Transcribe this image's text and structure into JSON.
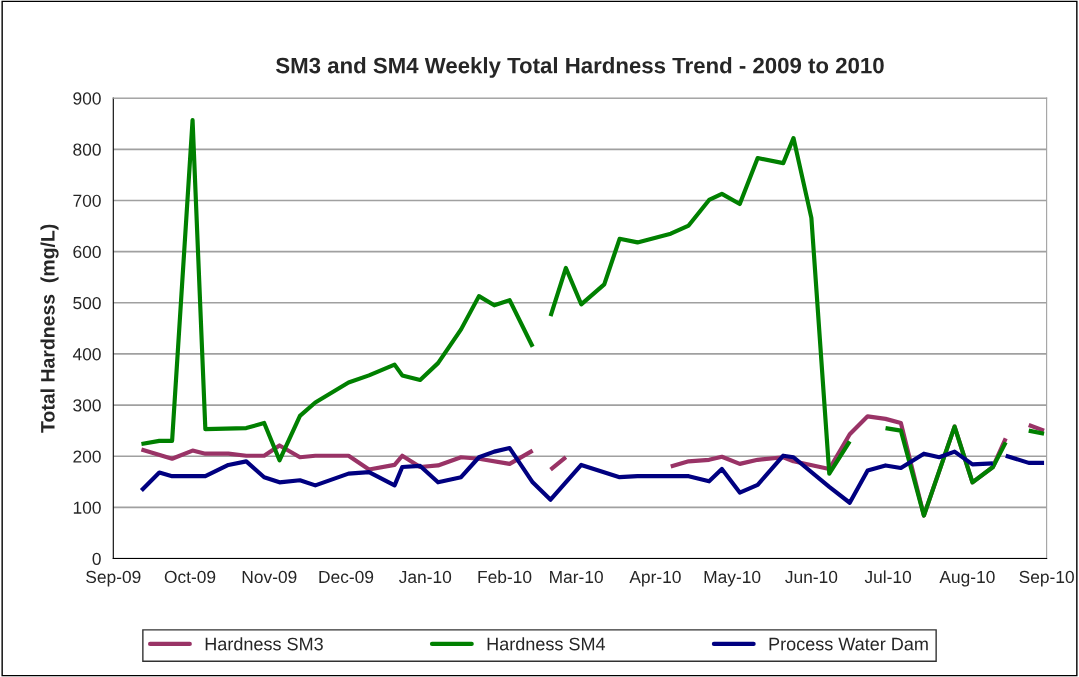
{
  "chart_data": {
    "type": "line",
    "title": "SM3 and SM4 Weekly Total Hardness Trend - 2009 to 2010",
    "ylabel": "Total Hardness  (mg/L)",
    "xlim": [
      "2009-09-01",
      "2010-09-01"
    ],
    "xticks": [
      {
        "value": "2009-09-01",
        "label": "Sep-09"
      },
      {
        "value": "2009-10-01",
        "label": "Oct-09"
      },
      {
        "value": "2009-11-01",
        "label": "Nov-09"
      },
      {
        "value": "2009-12-01",
        "label": "Dec-09"
      },
      {
        "value": "2010-01-01",
        "label": "Jan-10"
      },
      {
        "value": "2010-02-01",
        "label": "Feb-10"
      },
      {
        "value": "2010-03-01",
        "label": "Mar-10"
      },
      {
        "value": "2010-04-01",
        "label": "Apr-10"
      },
      {
        "value": "2010-05-01",
        "label": "May-10"
      },
      {
        "value": "2010-06-01",
        "label": "Jun-10"
      },
      {
        "value": "2010-07-01",
        "label": "Jul-10"
      },
      {
        "value": "2010-08-01",
        "label": "Aug-10"
      },
      {
        "value": "2010-09-01",
        "label": "Sep-10"
      }
    ],
    "ylim": [
      0,
      900
    ],
    "yticks": [
      0,
      100,
      200,
      300,
      400,
      500,
      600,
      700,
      800,
      900
    ],
    "grid": "y",
    "legend": "bottom",
    "marker": "none",
    "line_style": "solid",
    "series": [
      {
        "name": "Hardness SM3",
        "color": "#993366",
        "x": [
          "2009-09-12",
          "2009-09-24",
          "2009-10-02",
          "2009-10-07",
          "2009-10-16",
          "2009-10-23",
          "2009-10-30",
          "2009-11-05",
          "2009-11-13",
          "2009-11-19",
          "2009-12-02",
          "2009-12-10",
          "2009-12-20",
          "2009-12-23",
          "2009-12-30",
          "2010-01-06",
          "2010-01-15",
          "2010-01-22",
          "2010-02-03",
          "2010-02-12",
          "2010-02-15",
          "2010-02-19",
          "2010-02-25",
          "2010-03-30",
          "2010-04-07",
          "2010-04-14",
          "2010-04-22",
          "2010-04-27",
          "2010-05-04",
          "2010-05-11",
          "2010-05-21",
          "2010-05-25",
          "2010-06-08",
          "2010-06-16",
          "2010-06-23",
          "2010-06-30",
          "2010-07-06",
          "2010-07-15",
          "2010-07-27",
          "2010-08-03",
          "2010-08-11",
          "2010-08-16",
          "2010-08-20",
          "2010-08-25",
          "2010-08-31"
        ],
        "values": [
          213,
          195,
          211,
          205,
          205,
          201,
          201,
          221,
          198,
          201,
          201,
          174,
          183,
          201,
          179,
          182,
          198,
          195,
          185,
          211,
          null,
          174,
          198,
          null,
          180,
          190,
          193,
          199,
          185,
          193,
          198,
          190,
          175,
          243,
          278,
          273,
          265,
          84,
          258,
          149,
          179,
          235,
          null,
          261,
          250
        ]
      },
      {
        "name": "Hardness SM4",
        "color": "#008000",
        "x": [
          "2009-09-12",
          "2009-09-19",
          "2009-09-24",
          "2009-10-02",
          "2009-10-07",
          "2009-10-23",
          "2009-10-30",
          "2009-11-05",
          "2009-11-13",
          "2009-11-19",
          "2009-12-02",
          "2009-12-10",
          "2009-12-20",
          "2009-12-23",
          "2009-12-30",
          "2010-01-06",
          "2010-01-15",
          "2010-01-22",
          "2010-01-28",
          "2010-02-03",
          "2010-02-12",
          "2010-02-15",
          "2010-02-19",
          "2010-02-25",
          "2010-03-03",
          "2010-03-12",
          "2010-03-18",
          "2010-03-25",
          "2010-04-07",
          "2010-04-14",
          "2010-04-22",
          "2010-04-27",
          "2010-05-04",
          "2010-05-11",
          "2010-05-21",
          "2010-05-25",
          "2010-06-01",
          "2010-06-08",
          "2010-06-16",
          "2010-06-23",
          "2010-06-30",
          "2010-07-06",
          "2010-07-15",
          "2010-07-27",
          "2010-08-03",
          "2010-08-11",
          "2010-08-16",
          "2010-08-20",
          "2010-08-25",
          "2010-08-31"
        ],
        "values": [
          224,
          230,
          230,
          857,
          253,
          255,
          265,
          192,
          279,
          305,
          344,
          358,
          379,
          358,
          349,
          382,
          448,
          513,
          495,
          505,
          414,
          null,
          474,
          568,
          497,
          536,
          625,
          618,
          635,
          651,
          701,
          713,
          693,
          783,
          773,
          822,
          666,
          166,
          229,
          null,
          255,
          250,
          84,
          258,
          149,
          179,
          227,
          null,
          250,
          244
        ]
      },
      {
        "name": "Process Water Dam",
        "color": "#000080",
        "x": [
          "2009-09-12",
          "2009-09-19",
          "2009-09-24",
          "2009-10-07",
          "2009-10-16",
          "2009-10-23",
          "2009-10-30",
          "2009-11-05",
          "2009-11-13",
          "2009-11-19",
          "2009-12-02",
          "2009-12-10",
          "2009-12-20",
          "2009-12-23",
          "2009-12-30",
          "2010-01-06",
          "2010-01-15",
          "2010-01-22",
          "2010-01-28",
          "2010-02-03",
          "2010-02-12",
          "2010-02-19",
          "2010-03-03",
          "2010-03-18",
          "2010-03-25",
          "2010-04-14",
          "2010-04-22",
          "2010-04-27",
          "2010-05-04",
          "2010-05-11",
          "2010-05-21",
          "2010-05-25",
          "2010-06-08",
          "2010-06-16",
          "2010-06-23",
          "2010-06-30",
          "2010-07-06",
          "2010-07-15",
          "2010-07-21",
          "2010-07-27",
          "2010-08-03",
          "2010-08-11",
          "2010-08-14",
          "2010-08-16",
          "2010-08-25",
          "2010-08-31"
        ],
        "values": [
          133,
          168,
          161,
          161,
          183,
          190,
          159,
          149,
          153,
          143,
          166,
          169,
          143,
          179,
          181,
          149,
          159,
          198,
          209,
          216,
          149,
          115,
          183,
          159,
          161,
          161,
          151,
          175,
          129,
          144,
          201,
          198,
          140,
          109,
          172,
          182,
          177,
          205,
          198,
          209,
          184,
          186,
          null,
          201,
          187,
          187
        ]
      }
    ]
  }
}
